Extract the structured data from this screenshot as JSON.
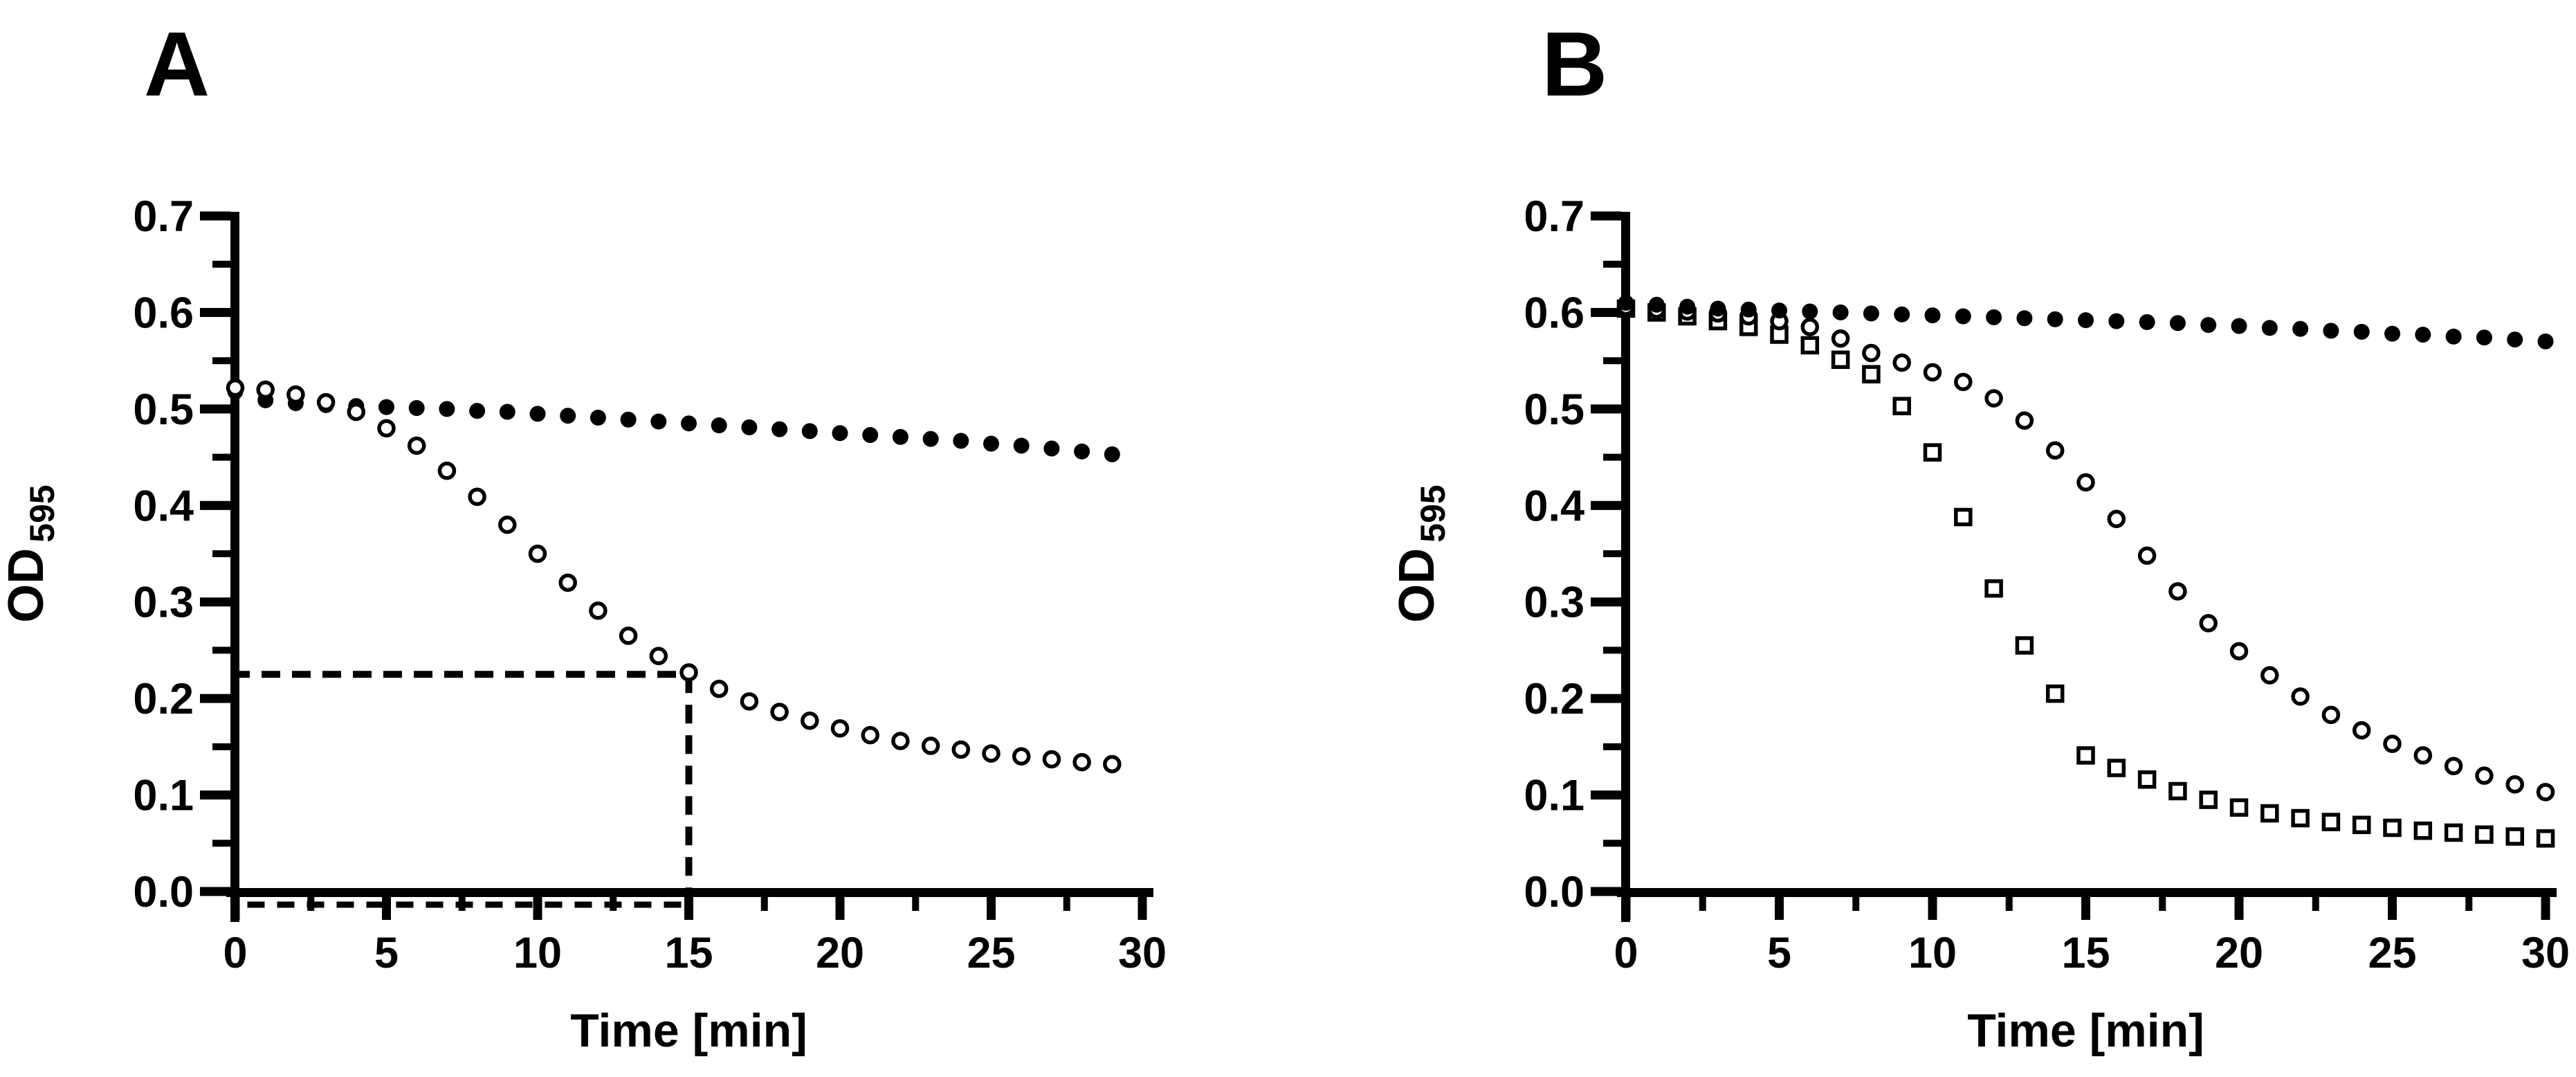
{
  "page": {
    "background_color": "#ffffff",
    "ink_color": "#000000",
    "description": "Two-panel scatter figure of optical density (OD 595) versus time in minutes"
  },
  "chart_data": [
    {
      "panel_label": "A",
      "type": "scatter",
      "title": "",
      "xlabel": "Time [min]",
      "ylabel": "OD",
      "ylabel_subscript": "595",
      "xlim": [
        0,
        30
      ],
      "ylim": [
        0.0,
        0.7
      ],
      "grid": false,
      "legend": false,
      "x_major_ticks": [
        0,
        5,
        10,
        15,
        20,
        25,
        30
      ],
      "x_tick_labels": [
        "0",
        "5",
        "10",
        "15",
        "20",
        "25",
        "30"
      ],
      "x_minor_tick_step": 2.5,
      "y_major_ticks": [
        0.0,
        0.1,
        0.2,
        0.3,
        0.4,
        0.5,
        0.6,
        0.7
      ],
      "y_tick_labels": [
        "0.0",
        "0.1",
        "0.2",
        "0.3",
        "0.4",
        "0.5",
        "0.6",
        "0.7"
      ],
      "y_minor_tick_step": 0.05,
      "x": [
        0,
        1,
        2,
        3,
        4,
        5,
        6,
        7,
        8,
        9,
        10,
        11,
        12,
        13,
        14,
        15,
        16,
        17,
        18,
        19,
        20,
        21,
        22,
        23,
        24,
        25,
        26,
        27,
        28,
        29
      ],
      "series": [
        {
          "name": "filled-circles",
          "marker": "filled-circle",
          "values": [
            0.518,
            0.509,
            0.506,
            0.504,
            0.503,
            0.502,
            0.501,
            0.5,
            0.498,
            0.497,
            0.495,
            0.493,
            0.491,
            0.489,
            0.487,
            0.485,
            0.483,
            0.481,
            0.479,
            0.477,
            0.475,
            0.473,
            0.471,
            0.469,
            0.467,
            0.464,
            0.462,
            0.459,
            0.456,
            0.453
          ]
        },
        {
          "name": "open-circles",
          "marker": "open-circle",
          "values": [
            0.522,
            0.52,
            0.515,
            0.507,
            0.497,
            0.48,
            0.462,
            0.436,
            0.409,
            0.38,
            0.35,
            0.32,
            0.291,
            0.265,
            0.244,
            0.227,
            0.21,
            0.197,
            0.186,
            0.177,
            0.169,
            0.162,
            0.156,
            0.151,
            0.147,
            0.143,
            0.14,
            0.137,
            0.134,
            0.132
          ]
        }
      ],
      "annotations": [
        {
          "type": "dashed-horizontal-line",
          "y": 0.225,
          "x_from": 0,
          "x_to": 15
        },
        {
          "type": "dashed-vertical-line",
          "x": 15,
          "y_from": 0.0,
          "y_to": 0.225
        },
        {
          "type": "dashed-baseline",
          "y": 0.0,
          "x_from": 0.4,
          "x_to": 15
        }
      ]
    },
    {
      "panel_label": "B",
      "type": "scatter",
      "title": "",
      "xlabel": "Time [min]",
      "ylabel": "OD",
      "ylabel_subscript": "595",
      "xlim": [
        0,
        30
      ],
      "ylim": [
        0.0,
        0.7
      ],
      "grid": false,
      "legend": false,
      "x_major_ticks": [
        0,
        5,
        10,
        15,
        20,
        25,
        30
      ],
      "x_tick_labels": [
        "0",
        "5",
        "10",
        "15",
        "20",
        "25",
        "30"
      ],
      "x_minor_tick_step": 2.5,
      "y_major_ticks": [
        0.0,
        0.1,
        0.2,
        0.3,
        0.4,
        0.5,
        0.6,
        0.7
      ],
      "y_tick_labels": [
        "0.0",
        "0.1",
        "0.2",
        "0.3",
        "0.4",
        "0.5",
        "0.6",
        "0.7"
      ],
      "y_minor_tick_step": 0.05,
      "x": [
        0,
        1,
        2,
        3,
        4,
        5,
        6,
        7,
        8,
        9,
        10,
        11,
        12,
        13,
        14,
        15,
        16,
        17,
        18,
        19,
        20,
        21,
        22,
        23,
        24,
        25,
        26,
        27,
        28,
        29,
        30
      ],
      "series": [
        {
          "name": "open-squares",
          "marker": "open-square",
          "values": [
            0.604,
            0.6,
            0.596,
            0.591,
            0.585,
            0.577,
            0.566,
            0.551,
            0.536,
            0.503,
            0.455,
            0.388,
            0.314,
            0.255,
            0.205,
            0.141,
            0.128,
            0.116,
            0.104,
            0.095,
            0.087,
            0.081,
            0.076,
            0.072,
            0.069,
            0.066,
            0.063,
            0.061,
            0.059,
            0.057,
            0.055
          ]
        },
        {
          "name": "open-circles",
          "marker": "open-circle",
          "values": [
            0.606,
            0.603,
            0.601,
            0.599,
            0.596,
            0.591,
            0.585,
            0.573,
            0.558,
            0.548,
            0.538,
            0.528,
            0.511,
            0.488,
            0.457,
            0.424,
            0.386,
            0.348,
            0.311,
            0.278,
            0.249,
            0.224,
            0.202,
            0.183,
            0.167,
            0.153,
            0.141,
            0.13,
            0.12,
            0.111,
            0.103
          ]
        },
        {
          "name": "filled-circles",
          "marker": "filled-circle",
          "values": [
            0.61,
            0.608,
            0.606,
            0.604,
            0.603,
            0.602,
            0.601,
            0.6,
            0.599,
            0.598,
            0.597,
            0.596,
            0.595,
            0.594,
            0.593,
            0.592,
            0.591,
            0.59,
            0.589,
            0.587,
            0.586,
            0.584,
            0.583,
            0.581,
            0.58,
            0.578,
            0.577,
            0.575,
            0.574,
            0.572,
            0.57
          ]
        }
      ],
      "annotations": []
    }
  ]
}
